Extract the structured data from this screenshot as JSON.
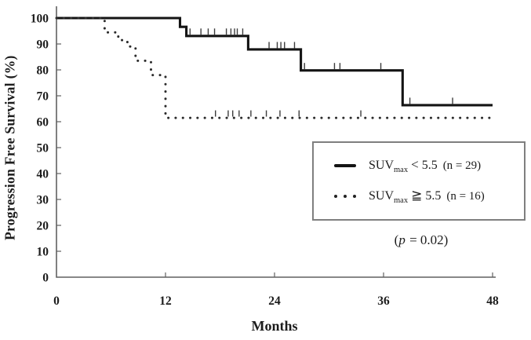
{
  "chart_data": {
    "type": "line",
    "subtype": "kaplan_meier_step",
    "title": "",
    "xlabel": "Months",
    "ylabel": "Progression Free Survival (%)",
    "xlim": [
      0,
      48
    ],
    "ylim": [
      0,
      100
    ],
    "x_ticks": [
      0,
      12,
      24,
      36,
      48
    ],
    "y_ticks": [
      0,
      10,
      20,
      30,
      40,
      50,
      60,
      70,
      80,
      90,
      100
    ],
    "grid": false,
    "legend_position": "lower right inside",
    "axis_color": "#606060",
    "series": [
      {
        "name": "SUVmax < 5.5",
        "n": 29,
        "line_style": "solid",
        "color": "#141414",
        "legend": {
          "prefix": "SUV",
          "sub": "max",
          "comparator": "<",
          "threshold": "5.5",
          "count": "(n = 29)"
        },
        "steps_months_percent": [
          [
            0,
            100
          ],
          [
            13.6,
            100
          ],
          [
            13.6,
            96.6
          ],
          [
            14.3,
            96.6
          ],
          [
            14.3,
            93.1
          ],
          [
            21.1,
            93.1
          ],
          [
            21.1,
            87.9
          ],
          [
            26.9,
            87.9
          ],
          [
            26.9,
            79.8
          ],
          [
            38.1,
            79.8
          ],
          [
            38.1,
            66.4
          ],
          [
            48,
            66.4
          ]
        ],
        "censor_marks_months_percent": [
          [
            14.7,
            93.1
          ],
          [
            15.9,
            93.1
          ],
          [
            16.7,
            93.1
          ],
          [
            17.4,
            93.1
          ],
          [
            18.7,
            93.1
          ],
          [
            19.2,
            93.1
          ],
          [
            19.6,
            93.1
          ],
          [
            19.9,
            93.1
          ],
          [
            20.5,
            93.1
          ],
          [
            23.4,
            87.9
          ],
          [
            24.3,
            87.9
          ],
          [
            24.7,
            87.9
          ],
          [
            25.1,
            87.9
          ],
          [
            26.2,
            87.9
          ],
          [
            27.3,
            79.8
          ],
          [
            30.6,
            79.8
          ],
          [
            31.2,
            79.8
          ],
          [
            35.7,
            79.8
          ],
          [
            38.9,
            66.4
          ],
          [
            43.6,
            66.4
          ]
        ]
      },
      {
        "name": "SUVmax ≧ 5.5",
        "n": 16,
        "line_style": "dotted",
        "color": "#2b2b2b",
        "legend": {
          "prefix": "SUV",
          "sub": "max",
          "comparator": "≧",
          "threshold": "5.5",
          "count": "(n = 16)"
        },
        "steps_months_percent": [
          [
            0,
            100
          ],
          [
            5.3,
            100
          ],
          [
            5.3,
            94.5
          ],
          [
            6.8,
            94.5
          ],
          [
            6.8,
            91.5
          ],
          [
            7.8,
            91.5
          ],
          [
            7.8,
            89
          ],
          [
            8.7,
            89
          ],
          [
            8.7,
            83.5
          ],
          [
            10.4,
            83.5
          ],
          [
            10.4,
            78
          ],
          [
            12,
            78
          ],
          [
            12,
            61.5
          ],
          [
            48,
            61.5
          ]
        ],
        "censor_marks_months_percent": [
          [
            17.5,
            61.5
          ],
          [
            18.9,
            61.5
          ],
          [
            19.4,
            61.5
          ],
          [
            20.1,
            61.5
          ],
          [
            21.4,
            61.5
          ],
          [
            23.1,
            61.5
          ],
          [
            24.6,
            61.5
          ],
          [
            26.7,
            61.5
          ],
          [
            33.5,
            61.5
          ]
        ]
      }
    ],
    "p_annotation": {
      "open": "(",
      "symbol": "p",
      "rest": " = 0.02)"
    }
  }
}
